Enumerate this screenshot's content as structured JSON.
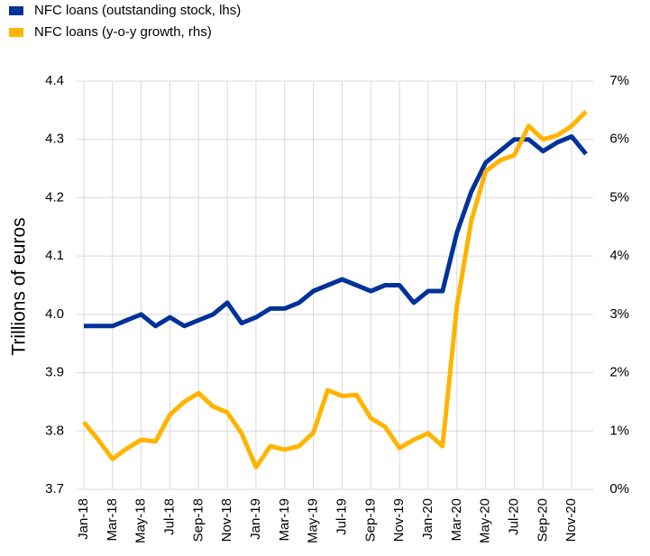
{
  "chart_data": {
    "type": "line",
    "y_label": "Trillions of euros",
    "categories": [
      "Jan-18",
      null,
      "Mar-18",
      null,
      "May-18",
      null,
      "Jul-18",
      null,
      "Sep-18",
      null,
      "Nov-18",
      null,
      "Jan-19",
      null,
      "Mar-19",
      null,
      "May-19",
      null,
      "Jul-19",
      null,
      "Sep-19",
      null,
      "Nov-19",
      null,
      "Jan-20",
      null,
      "Mar-20",
      null,
      "May-20",
      null,
      "Jul-20",
      null,
      "Sep-20",
      null,
      "Nov-20",
      null
    ],
    "series": [
      {
        "name": "NFC loans (outstanding  stock, lhs)",
        "color": "#003299",
        "axis": "y",
        "values": [
          3.98,
          3.98,
          3.98,
          3.99,
          4.0,
          3.98,
          3.995,
          3.98,
          3.99,
          4.0,
          4.02,
          3.985,
          3.995,
          4.01,
          4.01,
          4.02,
          4.04,
          4.05,
          4.06,
          4.05,
          4.04,
          4.05,
          4.05,
          4.02,
          4.04,
          4.04,
          4.14,
          4.21,
          4.26,
          4.28,
          4.3,
          4.3,
          4.28,
          4.295,
          4.305,
          4.275
        ]
      },
      {
        "name": "NFC loans (y-o-y growth, rhs)",
        "color": "#ffb400",
        "axis": "y2",
        "values": [
          1.15,
          0.85,
          0.52,
          0.7,
          0.85,
          0.82,
          1.28,
          1.5,
          1.65,
          1.42,
          1.32,
          0.96,
          0.38,
          0.74,
          0.68,
          0.74,
          0.97,
          1.7,
          1.6,
          1.62,
          1.22,
          1.07,
          0.71,
          0.85,
          0.96,
          0.74,
          3.14,
          4.6,
          5.45,
          5.64,
          5.73,
          6.23,
          6.0,
          6.07,
          6.23,
          6.48
        ]
      }
    ],
    "ylim": [
      3.7,
      4.4
    ],
    "yticks": [
      3.7,
      3.8,
      3.9,
      {
        "value": 4,
        "label": "4.0"
      },
      4.1,
      4.2,
      4.3,
      4.4
    ],
    "y2lim": [
      0,
      7
    ],
    "y2ticks": [
      {
        "value": 0,
        "label": "0%"
      },
      {
        "value": 1,
        "label": "1%"
      },
      {
        "value": 2,
        "label": "2%"
      },
      {
        "value": 3,
        "label": "3%"
      },
      {
        "value": 4,
        "label": "4%"
      },
      {
        "value": 5,
        "label": "5%"
      },
      {
        "value": 6,
        "label": "6%"
      },
      {
        "value": 7,
        "label": "7%"
      }
    ],
    "grid": true,
    "legend": "top-left"
  }
}
